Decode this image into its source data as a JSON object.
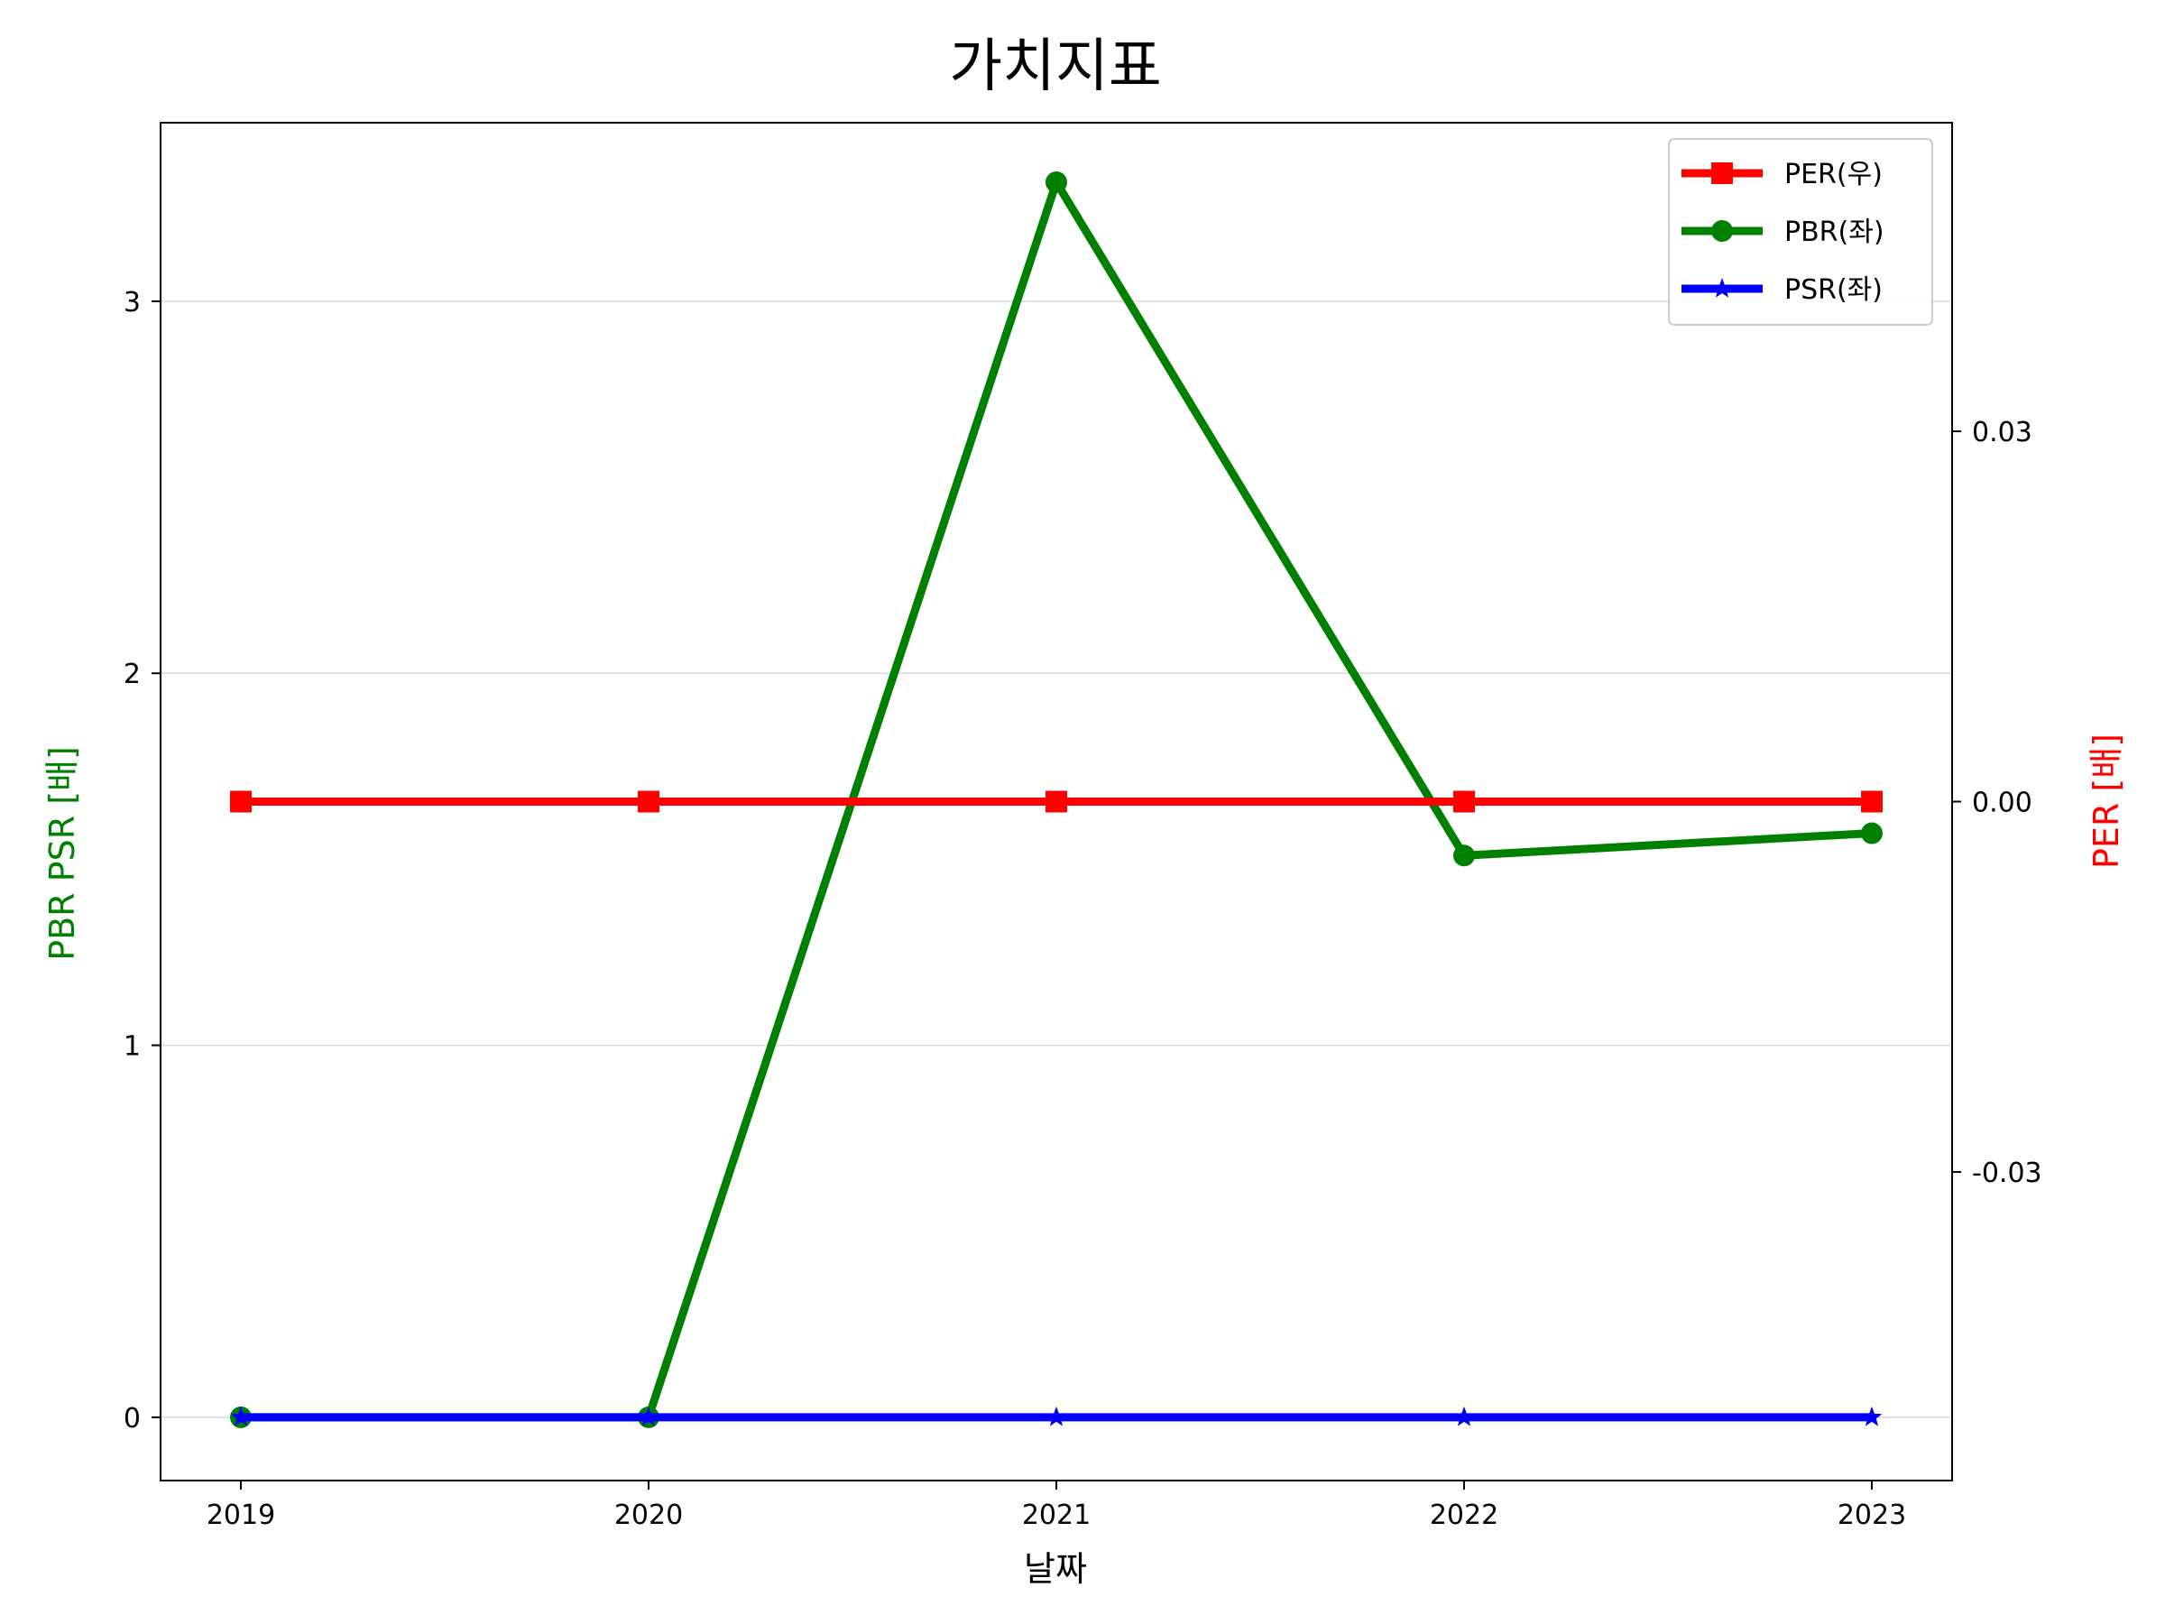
{
  "chart_data": {
    "type": "line",
    "title": "가치지표",
    "xlabel": "날짜",
    "ylabel_left": "PBR PSR [배]",
    "ylabel_right": "PER [배]",
    "categories": [
      "2019",
      "2020",
      "2021",
      "2022",
      "2023"
    ],
    "left_axis": {
      "ylim": [
        -0.17,
        3.48
      ],
      "ticks": [
        0,
        1,
        2,
        3
      ],
      "tick_labels": [
        "0",
        "1",
        "2",
        "3"
      ],
      "label_color": "#008000"
    },
    "right_axis": {
      "ylim": [
        -0.055,
        0.055
      ],
      "ticks": [
        -0.03,
        0.0,
        0.03
      ],
      "tick_labels": [
        "-0.03",
        "0.00",
        "0.03"
      ],
      "label_color": "#ff0000"
    },
    "series": [
      {
        "name": "PER(우)",
        "axis": "right",
        "color": "#ff0000",
        "marker": "square",
        "values": [
          0,
          0,
          0,
          0,
          0
        ]
      },
      {
        "name": "PBR(좌)",
        "axis": "left",
        "color": "#008000",
        "marker": "circle",
        "values": [
          0,
          0,
          3.32,
          1.51,
          1.57
        ]
      },
      {
        "name": "PSR(좌)",
        "axis": "left",
        "color": "#0000ff",
        "marker": "star",
        "values": [
          0,
          0,
          0,
          0,
          0
        ]
      }
    ],
    "grid": "horizontal",
    "legend_position": "top-right"
  }
}
